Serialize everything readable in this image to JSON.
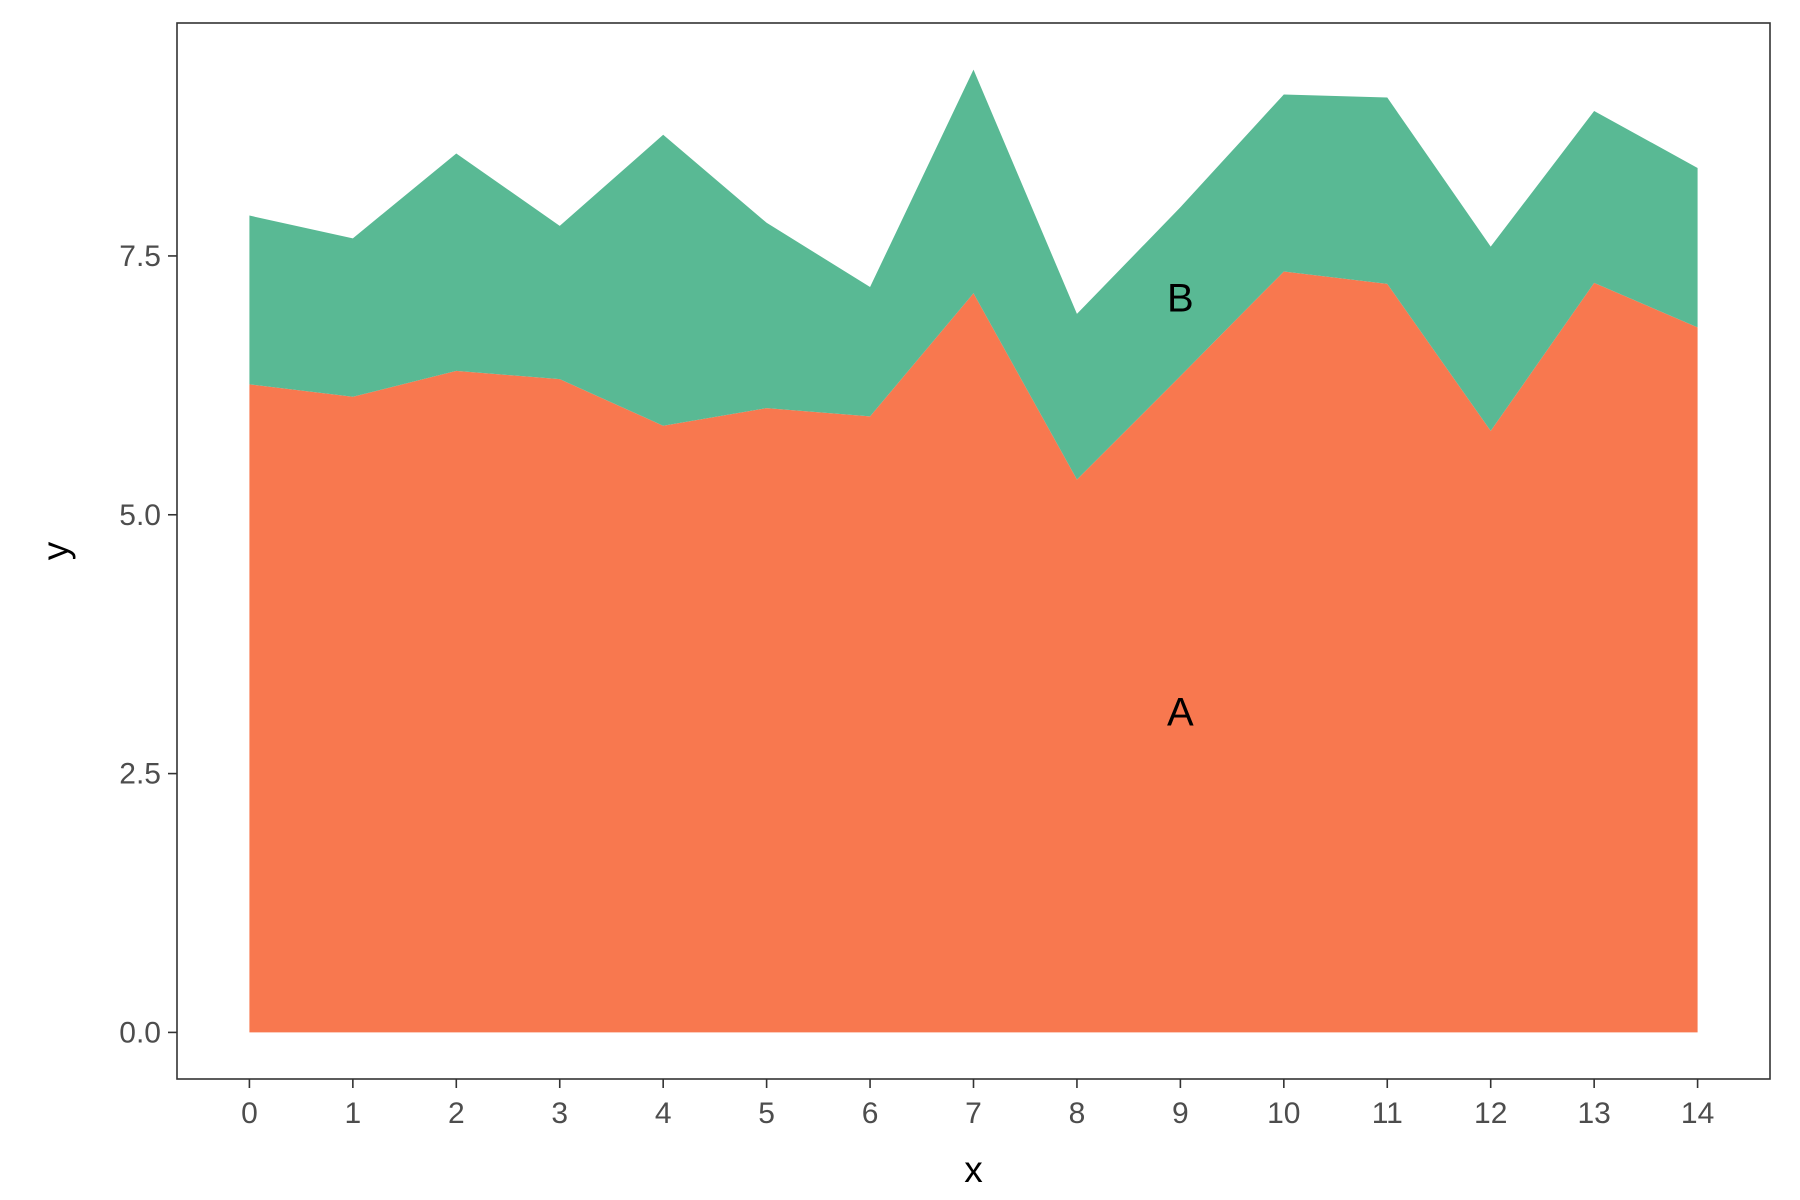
{
  "chart_data": {
    "type": "area",
    "stacked": true,
    "title": "",
    "xlabel": "x",
    "ylabel": "y",
    "x": [
      0,
      1,
      2,
      3,
      4,
      5,
      6,
      7,
      8,
      9,
      10,
      11,
      12,
      13,
      14
    ],
    "xlim": [
      -0.7,
      14.7
    ],
    "ylim": [
      -0.45,
      9.75
    ],
    "x_ticks": [
      "0",
      "1",
      "2",
      "3",
      "4",
      "5",
      "6",
      "7",
      "8",
      "9",
      "10",
      "11",
      "12",
      "13",
      "14"
    ],
    "y_ticks": [
      "0.0",
      "2.5",
      "5.0",
      "7.5"
    ],
    "y_tick_values": [
      0,
      2.5,
      5.0,
      7.5
    ],
    "grid": false,
    "legend": "none",
    "series": [
      {
        "name": "A",
        "color": "#F8784F",
        "values": [
          6.26,
          6.14,
          6.39,
          6.31,
          5.86,
          6.03,
          5.95,
          7.14,
          5.34,
          6.34,
          7.35,
          7.23,
          5.81,
          7.24,
          6.81
        ]
      },
      {
        "name": "B",
        "color": "#59B994",
        "values": [
          1.63,
          1.53,
          2.1,
          1.48,
          2.81,
          1.79,
          1.25,
          2.16,
          1.6,
          1.63,
          1.71,
          1.8,
          1.78,
          1.66,
          1.54
        ]
      }
    ],
    "annotations": [
      {
        "text": "A",
        "x": 9,
        "y": 3.1
      },
      {
        "text": "B",
        "x": 9,
        "y": 7.1
      }
    ]
  }
}
